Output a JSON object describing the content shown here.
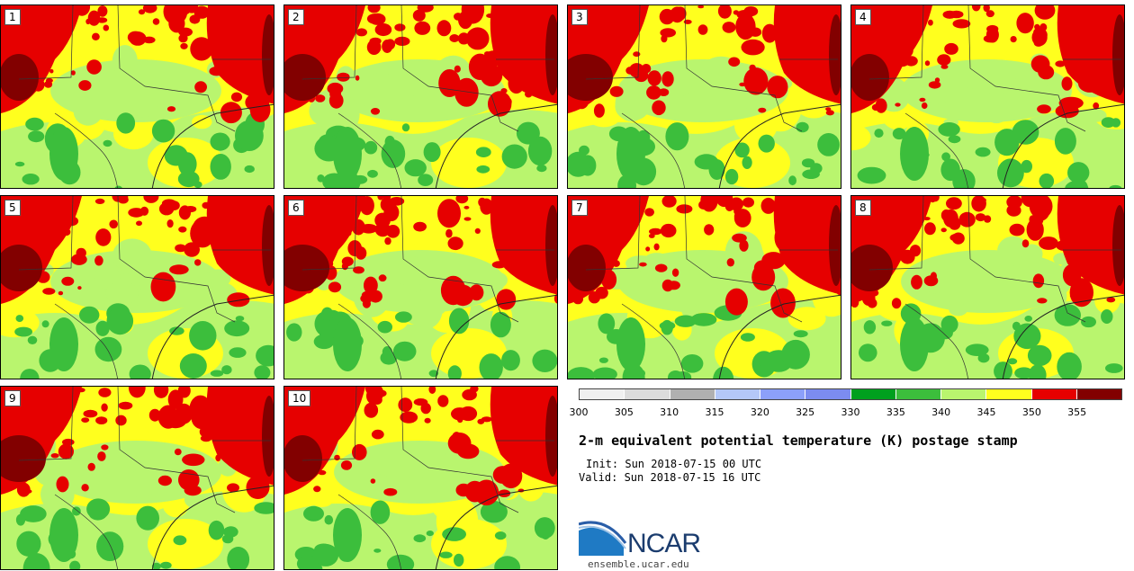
{
  "panels": [
    {
      "label": "1"
    },
    {
      "label": "2"
    },
    {
      "label": "3"
    },
    {
      "label": "4"
    },
    {
      "label": "5"
    },
    {
      "label": "6"
    },
    {
      "label": "7"
    },
    {
      "label": "8"
    },
    {
      "label": "9"
    },
    {
      "label": "10"
    }
  ],
  "colorbar": {
    "colors": [
      "#f0f0f0",
      "#dcdcdc",
      "#b0b0b0",
      "#b4c8f8",
      "#8ca0fa",
      "#7c8cf0",
      "#00a01e",
      "#3cbe3c",
      "#b9f56e",
      "#ffff1e",
      "#e60000",
      "#820000"
    ],
    "ticks": [
      "300",
      "305",
      "310",
      "315",
      "320",
      "325",
      "330",
      "335",
      "340",
      "345",
      "350",
      "355"
    ]
  },
  "title": "2-m equivalent potential temperature (K) postage stamp",
  "init": "Init: Sun 2018-07-15 00 UTC",
  "valid": "Valid: Sun 2018-07-15 16 UTC",
  "logo": {
    "text": "NCAR",
    "url": "ensemble.ucar.edu"
  }
}
